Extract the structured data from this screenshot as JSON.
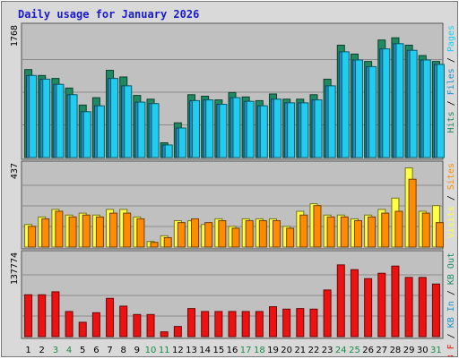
{
  "chart_data": {
    "type": "bar",
    "title": "Daily usage for January 2026",
    "categories": [
      "1",
      "2",
      "3",
      "4",
      "5",
      "6",
      "7",
      "8",
      "9",
      "10",
      "11",
      "12",
      "13",
      "14",
      "15",
      "16",
      "17",
      "18",
      "19",
      "20",
      "21",
      "22",
      "23",
      "24",
      "25",
      "26",
      "27",
      "28",
      "29",
      "30",
      "31"
    ],
    "weekend_days": [
      3,
      4,
      10,
      11,
      17,
      18,
      24,
      25,
      31
    ],
    "panels": [
      {
        "scale_label": "1768",
        "ylim": [
          0,
          1768
        ],
        "legend": [
          "Hits",
          "Files",
          "Pages"
        ],
        "series": [
          {
            "name": "Hits",
            "color": "#1f8a62",
            "values": [
              1190,
              1110,
              1070,
              940,
              710,
              810,
              1180,
              1090,
              840,
              790,
              200,
              470,
              850,
              830,
              780,
              880,
              820,
              770,
              860,
              790,
              790,
              850,
              1060,
              1520,
              1400,
              1300,
              1590,
              1620,
              1520,
              1380,
              1300
            ]
          },
          {
            "name": "Files",
            "color": "#1e90c8",
            "values": [
              1110,
              1060,
              990,
              850,
              620,
              700,
              1070,
              970,
              750,
              730,
              170,
              400,
              770,
              780,
              720,
              810,
              760,
              700,
              790,
              740,
              740,
              780,
              970,
              1430,
              1320,
              1230,
              1470,
              1540,
              1450,
              1320,
              1260
            ]
          },
          {
            "name": "Pages",
            "color": "#22ccee",
            "values": [
              1110,
              1060,
              990,
              850,
              620,
              700,
              1070,
              970,
              750,
              730,
              170,
              400,
              770,
              780,
              720,
              810,
              760,
              700,
              790,
              740,
              740,
              780,
              970,
              1430,
              1320,
              1230,
              1470,
              1540,
              1450,
              1320,
              1260
            ]
          }
        ]
      },
      {
        "scale_label": "437",
        "ylim": [
          0,
          437
        ],
        "legend": [
          "Visits",
          "Sites"
        ],
        "series": [
          {
            "name": "Visits",
            "color": "#ffff44",
            "values": [
              120,
              160,
              200,
              170,
              180,
              170,
              200,
              200,
              160,
              30,
              60,
              140,
              140,
              120,
              150,
              110,
              150,
              150,
              150,
              110,
              190,
              230,
              170,
              170,
              150,
              170,
              200,
              260,
              420,
              190,
              220
            ]
          },
          {
            "name": "Sites",
            "color": "#ff8c00",
            "values": [
              110,
              150,
              190,
              160,
              170,
              160,
              180,
              180,
              150,
              25,
              50,
              130,
              150,
              130,
              140,
              100,
              140,
              140,
              140,
              100,
              170,
              220,
              160,
              160,
              140,
              160,
              180,
              190,
              360,
              180,
              130
            ]
          }
        ]
      },
      {
        "scale_label": "137774",
        "ylim": [
          0,
          137774
        ],
        "legend": [
          "KB F",
          "KB In",
          "KB Out"
        ],
        "series": [
          {
            "name": "KB F",
            "color": "#ee1111",
            "values": [
              70000,
              70000,
              75000,
              42000,
              24000,
              40000,
              64000,
              51000,
              37000,
              37000,
              8000,
              17000,
              47000,
              42000,
              42000,
              42000,
              42000,
              42000,
              50000,
              46000,
              47000,
              46000,
              78000,
              120000,
              112000,
              97000,
              106000,
              118000,
              99000,
              99000,
              88000
            ]
          }
        ]
      }
    ]
  },
  "colors": {
    "frame_bg": "#d9d9d9",
    "plot_bg": "#c0c0c0",
    "grid": "#8c8c8c",
    "title": "#1a1ac8",
    "weekday_label": "#000000",
    "weekend_label": "#1a8a4a",
    "kb_in": "#1e90c8",
    "kb_out": "#1f8a62"
  }
}
